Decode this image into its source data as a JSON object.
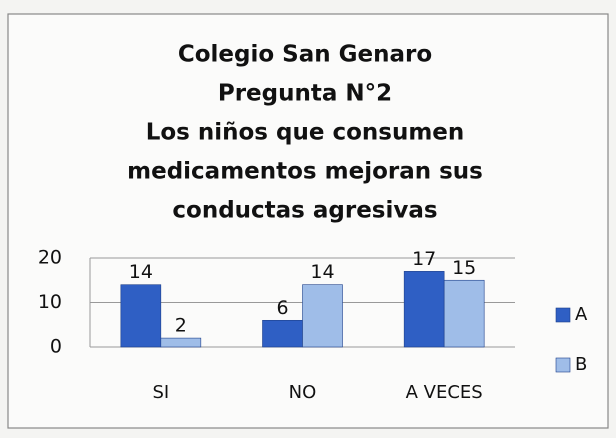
{
  "chart_data": {
    "type": "bar",
    "title": [
      "Colegio San Genaro",
      "Pregunta N°2",
      "Los niños que consumen",
      "medicamentos mejoran sus",
      "conductas agresivas"
    ],
    "categories": [
      "SI",
      "NO",
      "A VECES"
    ],
    "series": [
      {
        "name": "A",
        "color": "#2f5fc4",
        "values": [
          14,
          6,
          17
        ]
      },
      {
        "name": "B",
        "color": "#9fbde8",
        "values": [
          2,
          14,
          15
        ]
      }
    ],
    "ylim": [
      0,
      20
    ],
    "yticks": [
      0,
      10,
      20
    ],
    "grid": true,
    "legend": "right"
  }
}
